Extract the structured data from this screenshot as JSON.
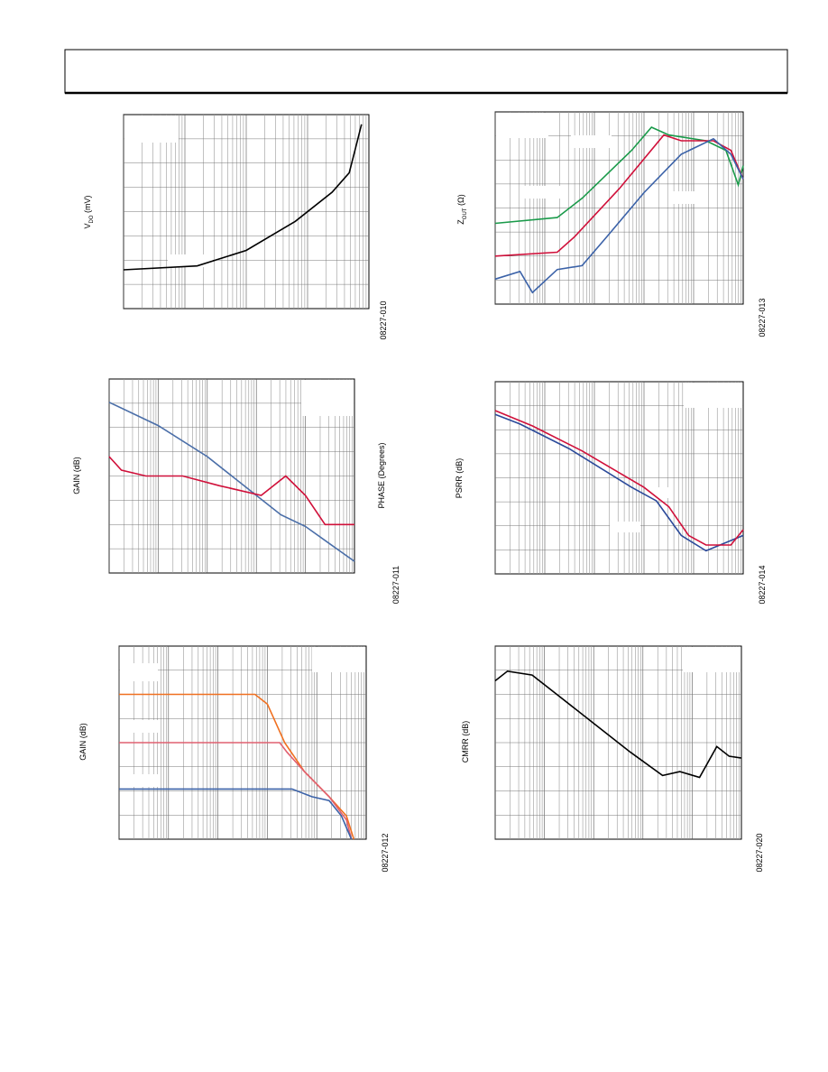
{
  "charts": [
    {
      "y_label": "V",
      "y_label_sub": "DO",
      "y_label_unit": " (mV)",
      "figure_id": "08227-010",
      "xlim": [
        0,
        100
      ],
      "ylim": [
        0,
        100
      ],
      "series": [
        {
          "color": "#000000",
          "x": [
            0,
            30,
            50,
            70,
            85,
            92,
            95,
            97
          ],
          "values": [
            20,
            22,
            30,
            45,
            60,
            70,
            85,
            95
          ]
        }
      ]
    },
    {
      "y_label": "Z",
      "y_label_sub": "OUT",
      "y_label_unit": " (Ω)",
      "figure_id": "08227-013",
      "xlim": [
        0,
        100
      ],
      "ylim": [
        0,
        100
      ],
      "series": [
        {
          "color": "#1a9a4a",
          "x": [
            0,
            25,
            35,
            55,
            63,
            70,
            85,
            93,
            98,
            100
          ],
          "values": [
            42,
            45,
            55,
            80,
            92,
            88,
            85,
            80,
            62,
            72
          ]
        },
        {
          "color": "#d0103a",
          "x": [
            0,
            25,
            32,
            50,
            68,
            75,
            88,
            95,
            100
          ],
          "values": [
            25,
            27,
            35,
            60,
            88,
            85,
            85,
            80,
            65
          ]
        },
        {
          "color": "#3b62a8",
          "x": [
            0,
            10,
            15,
            25,
            35,
            45,
            60,
            75,
            88,
            95,
            100
          ],
          "values": [
            13,
            17,
            6,
            18,
            20,
            35,
            58,
            78,
            86,
            78,
            65
          ]
        }
      ]
    },
    {
      "y_label": "GAIN (dB)",
      "y2_label": "PHASE (Degrees)",
      "figure_id": "08227-011",
      "xlim": [
        0,
        100
      ],
      "ylim": [
        0,
        100
      ],
      "series": [
        {
          "color": "#4a6ea8",
          "x": [
            0,
            20,
            40,
            60,
            70,
            80,
            90,
            100
          ],
          "values": [
            88,
            76,
            60,
            40,
            30,
            24,
            15,
            6
          ]
        },
        {
          "color": "#d0103a",
          "x": [
            0,
            5,
            15,
            30,
            45,
            62,
            72,
            80,
            88,
            100
          ],
          "values": [
            60,
            53,
            50,
            50,
            45,
            40,
            50,
            40,
            25,
            25
          ]
        }
      ]
    },
    {
      "y_label": "PSRR (dB)",
      "figure_id": "08227-014",
      "xlim": [
        0,
        100
      ],
      "ylim": [
        0,
        100
      ],
      "series": [
        {
          "color": "#2b4a9a",
          "x": [
            0,
            10,
            30,
            55,
            65,
            75,
            85,
            100
          ],
          "values": [
            83,
            78,
            65,
            45,
            38,
            20,
            12,
            20
          ]
        },
        {
          "color": "#d0103a",
          "x": [
            0,
            15,
            35,
            60,
            70,
            78,
            85,
            95,
            100
          ],
          "values": [
            85,
            77,
            64,
            45,
            35,
            20,
            15,
            15,
            23
          ]
        }
      ]
    },
    {
      "y_label": "GAIN (dB)",
      "figure_id": "08227-012",
      "xlim": [
        0,
        100
      ],
      "ylim": [
        0,
        100
      ],
      "series": [
        {
          "color": "#f07020",
          "x": [
            0,
            55,
            60,
            67,
            75,
            85,
            92,
            95
          ],
          "values": [
            75,
            75,
            70,
            50,
            35,
            22,
            12,
            0
          ]
        },
        {
          "color": "#e06070",
          "x": [
            0,
            65,
            68,
            75,
            85,
            92,
            94
          ],
          "values": [
            50,
            50,
            45,
            35,
            22,
            10,
            0
          ]
        },
        {
          "color": "#3b62a8",
          "x": [
            0,
            70,
            78,
            85,
            90,
            94
          ],
          "values": [
            26,
            26,
            22,
            20,
            12,
            0
          ]
        }
      ]
    },
    {
      "y_label": "CMRR (dB)",
      "figure_id": "08227-020",
      "xlim": [
        0,
        100
      ],
      "ylim": [
        0,
        100
      ],
      "series": [
        {
          "color": "#000000",
          "x": [
            0,
            5,
            15,
            25,
            40,
            55,
            68,
            75,
            83,
            90,
            95,
            100
          ],
          "values": [
            82,
            87,
            85,
            75,
            60,
            45,
            33,
            35,
            32,
            48,
            43,
            42
          ]
        }
      ]
    }
  ]
}
